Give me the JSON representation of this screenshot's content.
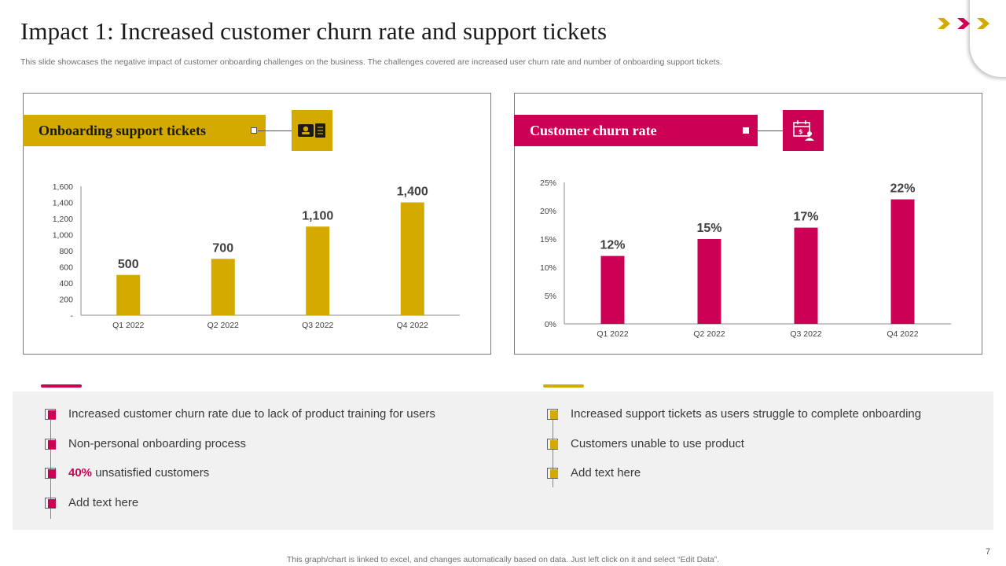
{
  "slide": {
    "title": "Impact 1: Increased customer churn rate and support tickets",
    "subtitle": "This slide showcases the negative impact of customer onboarding challenges on the business. The challenges covered are increased user churn rate and number of onboarding support tickets.",
    "footer": "This graph/chart is linked to excel,  and changes automatically based on data. Just left click on it and select “Edit Data”.",
    "page_number": "7"
  },
  "colors": {
    "gold": "#d4a900",
    "pink": "#cc0055",
    "panel_bg": "#f1f1f1"
  },
  "panels": {
    "left": {
      "banner": "Onboarding support tickets",
      "icon": "ticket-icon"
    },
    "right": {
      "banner": "Customer churn rate",
      "icon": "calendar-money-icon"
    }
  },
  "chart_data": [
    {
      "type": "bar",
      "title": "Onboarding support tickets",
      "categories": [
        "Q1 2022",
        "Q2 2022",
        "Q3 2022",
        "Q4 2022"
      ],
      "values": [
        500,
        700,
        1100,
        1400
      ],
      "value_labels": [
        "500",
        "700",
        "1,100",
        "1,400"
      ],
      "yticks": [
        "-",
        "200",
        "400",
        "600",
        "800",
        "1,000",
        "1,200",
        "1,400",
        "1,600"
      ],
      "ylim": [
        0,
        1600
      ],
      "color": "#d4a900",
      "grid": false
    },
    {
      "type": "bar",
      "title": "Customer churn rate",
      "categories": [
        "Q1 2022",
        "Q2 2022",
        "Q3 2022",
        "Q4 2022"
      ],
      "values": [
        12,
        15,
        17,
        22
      ],
      "value_labels": [
        "12%",
        "15%",
        "17%",
        "22%"
      ],
      "yticks": [
        "0%",
        "5%",
        "10%",
        "15%",
        "20%",
        "25%"
      ],
      "ylim": [
        0,
        25
      ],
      "color": "#cc0055",
      "grid": false
    }
  ],
  "left_points": [
    {
      "text": "Increased customer churn rate due to lack of product training for users"
    },
    {
      "text": "Non-personal onboarding process"
    },
    {
      "highlight": "40%",
      "text": " unsatisfied customers"
    },
    {
      "text": "Add text here"
    }
  ],
  "right_points": [
    {
      "text": "Increased support tickets as users struggle to complete onboarding"
    },
    {
      "text": "Customers unable to use product"
    },
    {
      "text": "Add text here"
    }
  ]
}
